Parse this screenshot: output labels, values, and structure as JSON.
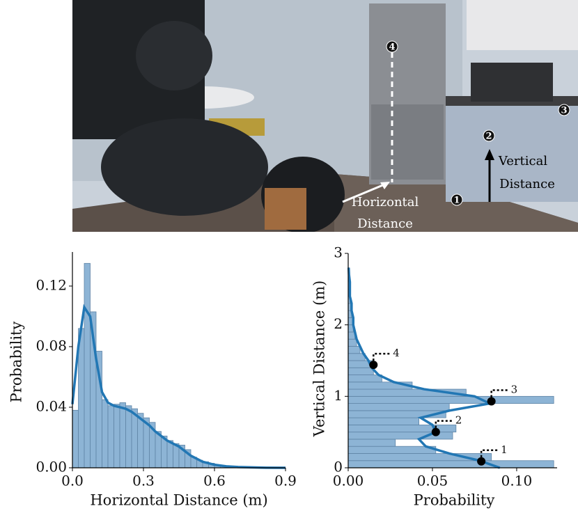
{
  "photo": {
    "horizontal_label": [
      "Horizontal",
      "Distance"
    ],
    "vertical_label": [
      "Vertical",
      "Distance"
    ],
    "markers": [
      "1",
      "2",
      "3",
      "4"
    ]
  },
  "chart_data": [
    {
      "type": "histogram",
      "orientation": "vertical",
      "xlabel": "Horizontal Distance (m)",
      "ylabel": "Probability",
      "bins": [
        0,
        0.025,
        0.05,
        0.075,
        0.1,
        0.125,
        0.15,
        0.175,
        0.2,
        0.225,
        0.25,
        0.275,
        0.3,
        0.325,
        0.35,
        0.375,
        0.4,
        0.425,
        0.45,
        0.475,
        0.5,
        0.525,
        0.55,
        0.575,
        0.6,
        0.625,
        0.65,
        0.675,
        0.7
      ],
      "counts": [
        0.038,
        0.092,
        0.135,
        0.103,
        0.077,
        0.045,
        0.041,
        0.042,
        0.043,
        0.041,
        0.039,
        0.036,
        0.033,
        0.03,
        0.024,
        0.021,
        0.018,
        0.016,
        0.015,
        0.012,
        0.007,
        0.005,
        0.004,
        0.003,
        0.002,
        0.001,
        0.001,
        0.0005
      ],
      "kde": {
        "x": [
          0,
          0.025,
          0.05,
          0.075,
          0.1,
          0.125,
          0.15,
          0.175,
          0.2,
          0.225,
          0.25,
          0.275,
          0.3,
          0.325,
          0.35,
          0.375,
          0.4,
          0.425,
          0.45,
          0.475,
          0.5,
          0.525,
          0.55,
          0.575,
          0.6,
          0.65,
          0.7,
          0.8,
          0.9
        ],
        "y": [
          0.042,
          0.08,
          0.106,
          0.1,
          0.072,
          0.05,
          0.043,
          0.041,
          0.04,
          0.039,
          0.037,
          0.034,
          0.031,
          0.028,
          0.024,
          0.021,
          0.018,
          0.016,
          0.014,
          0.011,
          0.008,
          0.006,
          0.004,
          0.003,
          0.002,
          0.001,
          0.0005,
          0.0001,
          0
        ]
      },
      "xlim": [
        0,
        0.9
      ],
      "ylim": [
        0,
        0.1425
      ],
      "xticks": [
        {
          "value": 0,
          "label": "0.0"
        },
        0.3,
        0.6,
        0.9
      ],
      "yticks": [
        {
          "value": 0,
          "label": "0.00"
        },
        {
          "value": 0.04,
          "label": "0.04"
        },
        {
          "value": 0.08,
          "label": "0.08"
        },
        {
          "value": 0.12,
          "label": "0.12"
        }
      ],
      "bar_color": "#8db4d5",
      "edge_color": "#5f84a6",
      "line_color": "#2277b4"
    },
    {
      "type": "histogram",
      "orientation": "horizontal",
      "xlabel": "Probability",
      "ylabel": "Vertical Distance (m)",
      "bins": [
        0,
        0.1,
        0.2,
        0.3,
        0.4,
        0.5,
        0.6,
        0.7,
        0.8,
        0.9,
        1.0,
        1.1,
        1.2,
        1.3,
        1.4,
        1.5,
        1.6,
        1.7,
        1.8,
        1.9,
        2.0,
        2.1,
        2.2,
        2.3,
        2.4,
        2.5,
        2.6,
        2.7,
        2.8
      ],
      "counts": [
        0.122,
        0.085,
        0.052,
        0.028,
        0.062,
        0.064,
        0.042,
        0.058,
        0.06,
        0.122,
        0.07,
        0.038,
        0.02,
        0.015,
        0.015,
        0.01,
        0.007,
        0.005,
        0.004,
        0.003,
        0.003,
        0.002,
        0.002,
        0.001,
        0.001,
        0.001,
        0.0005,
        0.0005
      ],
      "kde": {
        "x": [
          0.09,
          0.078,
          0.06,
          0.046,
          0.042,
          0.052,
          0.05,
          0.043,
          0.06,
          0.084,
          0.075,
          0.045,
          0.027,
          0.018,
          0.014,
          0.012,
          0.009,
          0.007,
          0.005,
          0.004,
          0.003,
          0.003,
          0.002,
          0.002,
          0.001,
          0.001,
          0.001,
          0.0005,
          0.0003
        ],
        "y": [
          0,
          0.1,
          0.2,
          0.3,
          0.4,
          0.5,
          0.6,
          0.7,
          0.8,
          0.9,
          1.0,
          1.1,
          1.2,
          1.3,
          1.4,
          1.5,
          1.6,
          1.7,
          1.8,
          1.9,
          2.0,
          2.1,
          2.2,
          2.3,
          2.4,
          2.5,
          2.6,
          2.7,
          2.8
        ]
      },
      "annotations": [
        {
          "label": "1",
          "x": 0.079,
          "y": 0.09
        },
        {
          "label": "2",
          "x": 0.052,
          "y": 0.5
        },
        {
          "label": "3",
          "x": 0.085,
          "y": 0.93
        },
        {
          "label": "4",
          "x": 0.015,
          "y": 1.44
        }
      ],
      "xlim": [
        0,
        0.124
      ],
      "ylim": [
        0,
        3
      ],
      "xticks": [
        {
          "value": 0,
          "label": "0.00"
        },
        {
          "value": 0.05,
          "label": "0.05"
        },
        {
          "value": 0.1,
          "label": "0.10"
        }
      ],
      "yticks": [
        0,
        1,
        2,
        3
      ],
      "bar_color": "#8db4d5",
      "edge_color": "#5f84a6",
      "line_color": "#2277b4"
    }
  ]
}
